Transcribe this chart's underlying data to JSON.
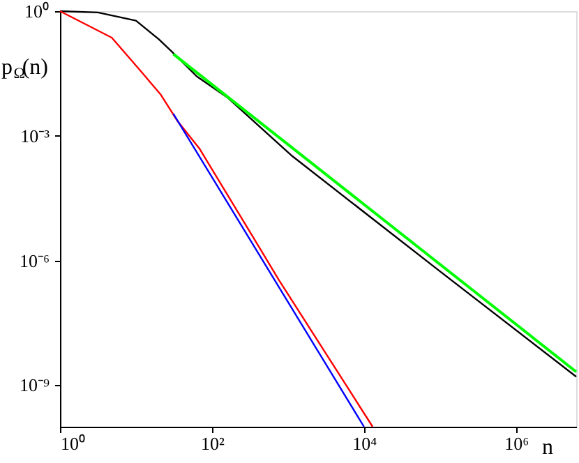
{
  "chart_data": {
    "type": "line",
    "xlabel": "n",
    "ylabel": "p$_{Ω}$(n)",
    "log": "xy",
    "xlim": [
      1,
      6200000
    ],
    "ylim": [
      1e-10,
      1
    ],
    "xticks": [
      {
        "value": 1,
        "label": "10⁰"
      },
      {
        "value": 100,
        "label": "10²"
      },
      {
        "value": 10000,
        "label": "10⁴"
      },
      {
        "value": 1000000,
        "label": "10⁶"
      }
    ],
    "yticks": [
      {
        "value": 1,
        "label": "10⁰"
      },
      {
        "value": 0.001,
        "label": "10⁻³"
      },
      {
        "value": 1e-06,
        "label": "10⁻⁶"
      },
      {
        "value": 1e-09,
        "label": "10⁻⁹"
      }
    ],
    "series": [
      {
        "color": "#000000",
        "x": [
          1,
          3.16,
          10,
          20,
          29.5,
          63,
          158,
          1150,
          100000,
          6200000
        ],
        "values": [
          1,
          0.93,
          0.59,
          0.21,
          0.107,
          0.027,
          0.0085,
          0.00032,
          5.5e-07,
          1.6e-09
        ]
      },
      {
        "color": "#ff0000",
        "x": [
          1,
          4.8,
          11,
          21,
          35,
          68,
          320,
          760,
          13000
        ],
        "values": [
          1,
          0.23,
          0.04,
          0.01,
          0.0023,
          0.0005,
          4.7e-06,
          3.4e-07,
          1e-10
        ]
      },
      {
        "color": "#00ff00",
        "x": [
          31,
          6200000
        ],
        "values": [
          0.093,
          2.1e-09
        ]
      },
      {
        "color": "#0000ff",
        "x": [
          31,
          10000
        ],
        "values": [
          0.0034,
          1e-10
        ]
      }
    ],
    "marker": "none",
    "line_style": "solid",
    "grid": false
  }
}
